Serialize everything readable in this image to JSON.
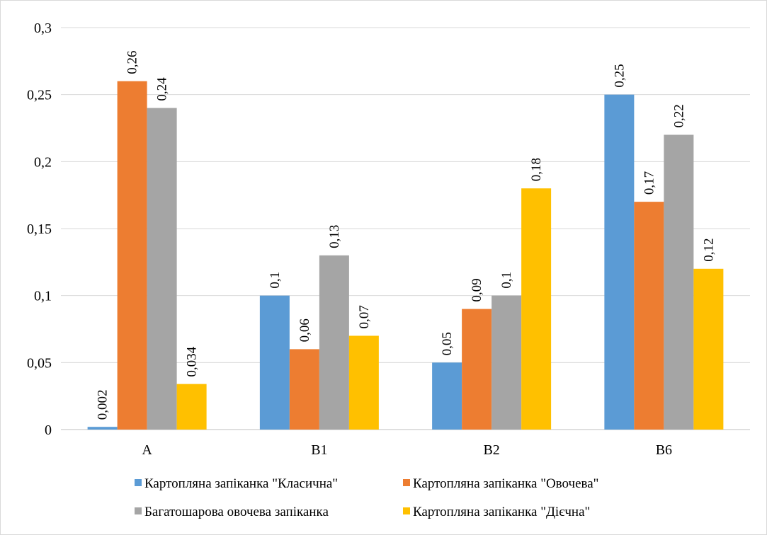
{
  "chart_data": {
    "type": "bar",
    "title": "",
    "xlabel": "",
    "ylabel": "",
    "categories": [
      "A",
      "B1",
      "B2",
      "B6"
    ],
    "y_ticks": [
      "0",
      "0,05",
      "0,1",
      "0,15",
      "0,2",
      "0,25",
      "0,3"
    ],
    "ylim": [
      0,
      0.3
    ],
    "grid": true,
    "legend_position": "bottom",
    "series": [
      {
        "name": "Картопляна запіканка \"Класична\"",
        "color": "#5b9bd5",
        "values": [
          0.002,
          0.1,
          0.05,
          0.25
        ],
        "labels": [
          "0,002",
          "0,1",
          "0,05",
          "0,25"
        ]
      },
      {
        "name": "Картопляна запіканка \"Овочева\"",
        "color": "#ed7d31",
        "values": [
          0.26,
          0.06,
          0.09,
          0.17
        ],
        "labels": [
          "0,26",
          "0,06",
          "0,09",
          "0,17"
        ]
      },
      {
        "name": "Багатошарова овочева запіканка",
        "color": "#a5a5a5",
        "values": [
          0.24,
          0.13,
          0.1,
          0.22
        ],
        "labels": [
          "0,24",
          "0,13",
          "0,1",
          "0,22"
        ]
      },
      {
        "name": "Картопляна запіканка \"Дієчна\"",
        "color": "#ffc000",
        "values": [
          0.034,
          0.07,
          0.18,
          0.12
        ],
        "labels": [
          "0,034",
          "0,07",
          "0,18",
          "0,12"
        ]
      }
    ]
  }
}
